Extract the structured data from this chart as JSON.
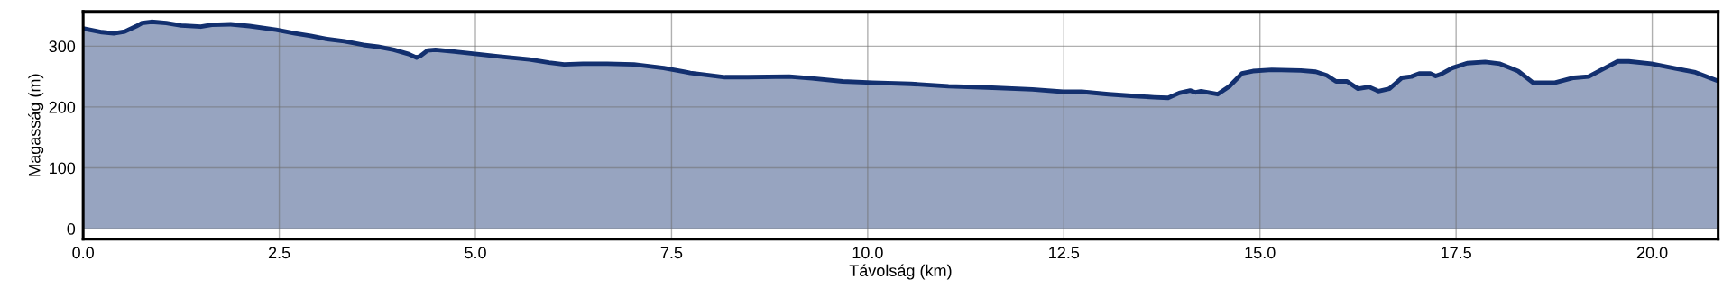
{
  "chart_data": {
    "type": "area",
    "xlabel": "Távolság (km)",
    "ylabel": "Magasság (m)",
    "xlim": [
      0,
      20.84
    ],
    "ylim": [
      -17,
      357
    ],
    "xticks": [
      {
        "value": 0,
        "label": "0.0"
      },
      {
        "value": 2.5,
        "label": "2.5"
      },
      {
        "value": 5,
        "label": "5.0"
      },
      {
        "value": 7.5,
        "label": "7.5"
      },
      {
        "value": 10,
        "label": "10.0"
      },
      {
        "value": 12.5,
        "label": "12.5"
      },
      {
        "value": 15,
        "label": "15.0"
      },
      {
        "value": 17.5,
        "label": "17.5"
      },
      {
        "value": 20,
        "label": "20.0"
      }
    ],
    "yticks": [
      0,
      100,
      200,
      300
    ],
    "grid": true,
    "series": [
      {
        "color": "#13306f",
        "x": [
          0,
          0.24,
          0.39,
          0.53,
          0.68,
          0.75,
          0.87,
          1.06,
          1.25,
          1.5,
          1.64,
          1.88,
          2.12,
          2.46,
          2.7,
          2.9,
          3.09,
          3.33,
          3.57,
          3.76,
          3.96,
          4.15,
          4.25,
          4.3,
          4.39,
          4.49,
          4.73,
          5.02,
          5.31,
          5.69,
          5.94,
          6.13,
          6.37,
          6.68,
          7.02,
          7.4,
          7.74,
          8.18,
          8.47,
          9.0,
          9.29,
          9.68,
          10.06,
          10.55,
          11.03,
          11.52,
          12.1,
          12.49,
          12.73,
          13.07,
          13.4,
          13.65,
          13.83,
          13.97,
          14.11,
          14.18,
          14.25,
          14.46,
          14.61,
          14.77,
          14.91,
          15.15,
          15.52,
          15.71,
          15.85,
          15.97,
          16.11,
          16.25,
          16.39,
          16.51,
          16.65,
          16.81,
          16.93,
          17.03,
          17.17,
          17.24,
          17.31,
          17.45,
          17.64,
          17.87,
          18.06,
          18.29,
          18.48,
          18.76,
          19.0,
          19.19,
          19.38,
          19.56,
          19.7,
          19.99,
          20.31,
          20.55,
          20.83
        ],
        "values": [
          329,
          323,
          321,
          324,
          333,
          338,
          340,
          338,
          334,
          332,
          335,
          336,
          333,
          327,
          321,
          317,
          312,
          308,
          302,
          299,
          294,
          287,
          281,
          284,
          293,
          294,
          291,
          287,
          283,
          278,
          273,
          270,
          271,
          271,
          270,
          264,
          256,
          249,
          249,
          250,
          247,
          242,
          240,
          238,
          234,
          232,
          229,
          225,
          225,
          221,
          218,
          216,
          215,
          223,
          227,
          224,
          226,
          221,
          234,
          255,
          259,
          261,
          260,
          258,
          252,
          242,
          242,
          230,
          233,
          226,
          230,
          248,
          250,
          255,
          255,
          251,
          254,
          264,
          272,
          274,
          271,
          259,
          240,
          240,
          248,
          250,
          263,
          275,
          275,
          271,
          263,
          257,
          243
        ]
      }
    ]
  }
}
